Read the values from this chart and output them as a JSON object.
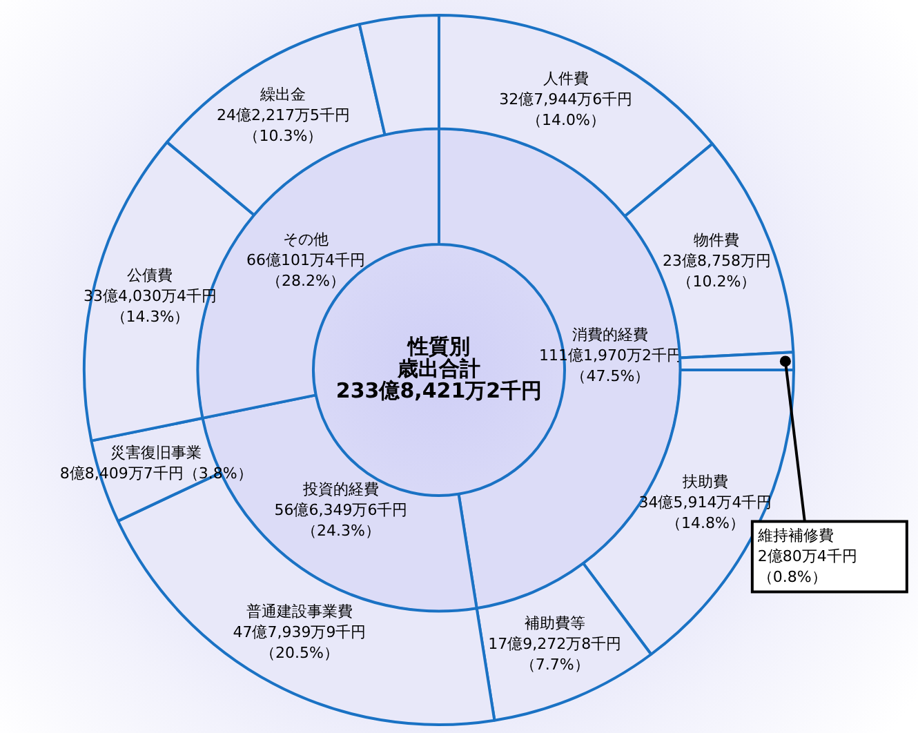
{
  "chart_data": [
    {
      "type": "donut",
      "title": "性質別",
      "subtitle": "歳出合計",
      "annotations": [
        "233億8,421万2千円"
      ],
      "categories": [
        "消費的経費",
        "投資的経費",
        "その他"
      ],
      "values": [
        47.5,
        24.3,
        28.2
      ],
      "value_labels": [
        "111億1,970万2千円（47.5%）",
        "56億6,349万6千円（24.3%）",
        "66億101万4千円（28.2%）"
      ],
      "colors": [
        "#dcdcf7",
        "#dcdcf7",
        "#dcdcf7"
      ]
    },
    {
      "type": "donut",
      "categories": [
        "人件費",
        "物件費",
        "維持補修費",
        "扶助費",
        "補助費等",
        "普通建設事業費",
        "災害復旧事業",
        "公債費",
        "繰出金",
        null
      ],
      "values": [
        14.0,
        10.2,
        0.8,
        14.8,
        7.7,
        20.5,
        3.8,
        14.3,
        10.3,
        3.6
      ],
      "value_labels": [
        "32億7,944万6千円（14.0%）",
        "23億8,758万円（10.2%）",
        "2億80万4千円（0.8%）",
        "34億5,914万4千円（14.8%）",
        "17億9,272万8千円（7.7%）",
        "47億7,939万9千円（20.5%）",
        "8億8,409万7千円（3.8%）",
        "33億4,030万4千円（14.3%）",
        "24億2,217万5千円（10.3%）",
        null
      ],
      "colors": [
        "#e8e8f9",
        "#e8e8f9",
        "#e8e8f9",
        "#e8e8f9",
        "#e8e8f9",
        "#e8e8f9",
        "#e8e8f9",
        "#e8e8f9",
        "#e8e8f9",
        "#e8e8f9"
      ]
    }
  ]
}
